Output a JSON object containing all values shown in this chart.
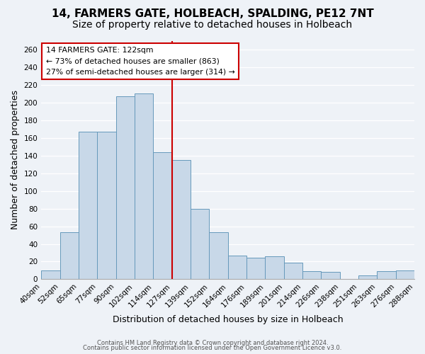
{
  "title": "14, FARMERS GATE, HOLBEACH, SPALDING, PE12 7NT",
  "subtitle": "Size of property relative to detached houses in Holbeach",
  "xlabel": "Distribution of detached houses by size in Holbeach",
  "ylabel": "Number of detached properties",
  "bin_labels": [
    "40sqm",
    "52sqm",
    "65sqm",
    "77sqm",
    "90sqm",
    "102sqm",
    "114sqm",
    "127sqm",
    "139sqm",
    "152sqm",
    "164sqm",
    "176sqm",
    "189sqm",
    "201sqm",
    "214sqm",
    "226sqm",
    "238sqm",
    "251sqm",
    "263sqm",
    "276sqm",
    "288sqm"
  ],
  "bar_heights": [
    10,
    53,
    167,
    167,
    207,
    210,
    144,
    135,
    80,
    53,
    27,
    24,
    26,
    19,
    9,
    8,
    0,
    4,
    9,
    10
  ],
  "bar_color": "#c8d8e8",
  "bar_edge_color": "#6699bb",
  "vline_x": 7,
  "vline_color": "#cc0000",
  "annotation_title": "14 FARMERS GATE: 122sqm",
  "annotation_line1": "← 73% of detached houses are smaller (863)",
  "annotation_line2": "27% of semi-detached houses are larger (314) →",
  "footer1": "Contains HM Land Registry data © Crown copyright and database right 2024.",
  "footer2": "Contains public sector information licensed under the Open Government Licence v3.0.",
  "ylim": [
    0,
    270
  ],
  "yticks": [
    0,
    20,
    40,
    60,
    80,
    100,
    120,
    140,
    160,
    180,
    200,
    220,
    240,
    260
  ],
  "background_color": "#eef2f7",
  "plot_bg_color": "#eef2f7",
  "grid_color": "#ffffff",
  "title_fontsize": 11,
  "subtitle_fontsize": 10,
  "axis_label_fontsize": 9,
  "tick_fontsize": 7.5
}
